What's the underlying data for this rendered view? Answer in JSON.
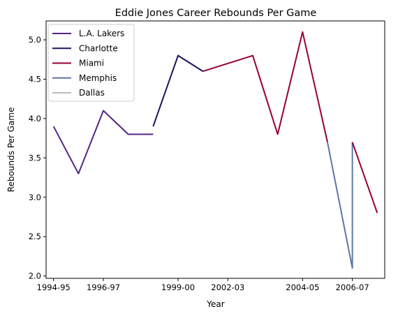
{
  "chart_data": {
    "type": "line",
    "title": "Eddie Jones  Career Rebounds Per Game",
    "xlabel": "Year",
    "ylabel": "Rebounds Per Game",
    "xlim": [
      -0.3,
      13.3
    ],
    "ylim": [
      1.97,
      5.24
    ],
    "x_ticks": [
      {
        "pos": 0,
        "label": "1994-95"
      },
      {
        "pos": 2,
        "label": "1996-97"
      },
      {
        "pos": 5,
        "label": "1999-00"
      },
      {
        "pos": 7,
        "label": "2002-03"
      },
      {
        "pos": 10,
        "label": "2004-05"
      },
      {
        "pos": 12,
        "label": "2006-07"
      }
    ],
    "y_ticks": [
      2.0,
      2.5,
      3.0,
      3.5,
      4.0,
      4.5,
      5.0
    ],
    "y_tick_labels": [
      "2.0",
      "2.5",
      "3.0",
      "3.5",
      "4.0",
      "4.5",
      "5.0"
    ],
    "grid": false,
    "legend_position": "top-left",
    "series": [
      {
        "name": "L.A. Lakers",
        "color": "#552583",
        "points": [
          [
            0,
            3.9
          ],
          [
            1,
            3.3
          ],
          [
            2,
            4.1
          ],
          [
            3,
            3.8
          ],
          [
            4,
            3.8
          ]
        ]
      },
      {
        "name": "Charlotte",
        "color": "#1d1160",
        "points": [
          [
            4,
            3.9
          ],
          [
            5,
            4.8
          ],
          [
            6,
            4.6
          ]
        ]
      },
      {
        "name": "Miami",
        "color": "#98002e",
        "points": [
          [
            6,
            4.6
          ],
          [
            8,
            4.8
          ],
          [
            9,
            3.8
          ],
          [
            10,
            5.1
          ],
          [
            11,
            3.7
          ]
        ]
      },
      {
        "name": "Memphis",
        "color": "#5d76a9",
        "points": [
          [
            11,
            3.7
          ],
          [
            12,
            2.1
          ],
          [
            12,
            3.7
          ]
        ]
      },
      {
        "name": "Dallas",
        "color": "#bbbbbb",
        "points": []
      },
      {
        "name": "Miami",
        "color": "#98002e",
        "in_legend": false,
        "points": [
          [
            12,
            3.7
          ],
          [
            13,
            2.8
          ]
        ]
      }
    ]
  }
}
